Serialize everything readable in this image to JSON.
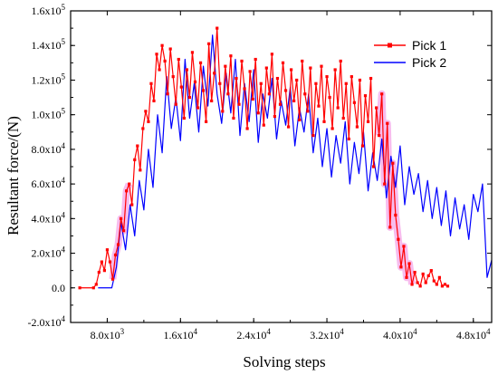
{
  "chart_data": {
    "type": "line",
    "title": "",
    "xlabel": "Solving steps",
    "ylabel": "Resultant force/(N)",
    "xlim": [
      4000,
      50000
    ],
    "ylim": [
      -20000,
      160000
    ],
    "xticks": [
      {
        "value": 8000,
        "label_mantissa": "8.0x10",
        "label_exp": "3"
      },
      {
        "value": 16000,
        "label_mantissa": "1.6x10",
        "label_exp": "4"
      },
      {
        "value": 24000,
        "label_mantissa": "2.4x10",
        "label_exp": "4"
      },
      {
        "value": 32000,
        "label_mantissa": "3.2x10",
        "label_exp": "4"
      },
      {
        "value": 40000,
        "label_mantissa": "4.0x10",
        "label_exp": "4"
      },
      {
        "value": 48000,
        "label_mantissa": "4.8x10",
        "label_exp": "4"
      }
    ],
    "yticks": [
      {
        "value": -20000,
        "label_mantissa": "-2.0x10",
        "label_exp": "4"
      },
      {
        "value": 0,
        "label_mantissa": "0.0",
        "label_exp": ""
      },
      {
        "value": 20000,
        "label_mantissa": "2.0x10",
        "label_exp": "4"
      },
      {
        "value": 40000,
        "label_mantissa": "4.0x10",
        "label_exp": "4"
      },
      {
        "value": 60000,
        "label_mantissa": "6.0x10",
        "label_exp": "4"
      },
      {
        "value": 80000,
        "label_mantissa": "8.0x10",
        "label_exp": "4"
      },
      {
        "value": 100000,
        "label_mantissa": "1.0x10",
        "label_exp": "5"
      },
      {
        "value": 120000,
        "label_mantissa": "1.2x10",
        "label_exp": "5"
      },
      {
        "value": 140000,
        "label_mantissa": "1.4x10",
        "label_exp": "5"
      },
      {
        "value": 160000,
        "label_mantissa": "1.6x10",
        "label_exp": "5"
      }
    ],
    "grid": false,
    "legend_position": "top-right",
    "series": [
      {
        "name": "Pick 1",
        "color": "#ff0000",
        "marker": "square",
        "x": [
          5000,
          6500,
          6800,
          7100,
          7400,
          7700,
          8000,
          8300,
          8600,
          8900,
          9200,
          9500,
          9800,
          10100,
          10400,
          10700,
          11000,
          11300,
          11600,
          11900,
          12200,
          12500,
          12800,
          13100,
          13400,
          13700,
          14000,
          14300,
          14600,
          14900,
          15200,
          15500,
          15800,
          16100,
          16400,
          16700,
          17000,
          17300,
          17600,
          17900,
          18200,
          18500,
          18800,
          19100,
          19400,
          19700,
          20000,
          20300,
          20600,
          20900,
          21200,
          21500,
          21800,
          22100,
          22400,
          22700,
          23000,
          23300,
          23600,
          23900,
          24200,
          24500,
          24800,
          25100,
          25400,
          25700,
          26000,
          26300,
          26600,
          26900,
          27200,
          27500,
          27800,
          28100,
          28400,
          28700,
          29000,
          29300,
          29600,
          29900,
          30200,
          30500,
          30800,
          31100,
          31400,
          31700,
          32000,
          32300,
          32600,
          32900,
          33200,
          33500,
          33800,
          34100,
          34400,
          34700,
          35000,
          35300,
          35600,
          35900,
          36200,
          36500,
          36800,
          37100,
          37400,
          37700,
          38000,
          38300,
          38600,
          38900,
          39200,
          39500,
          39800,
          40100,
          40400,
          40700,
          41000,
          41300,
          41600,
          41900,
          42200,
          42500,
          42800,
          43100,
          43400,
          43700,
          44000,
          44300,
          44600,
          44900,
          45200
        ],
        "y": [
          0,
          0,
          2000,
          9000,
          15000,
          10000,
          22000,
          15000,
          5000,
          19000,
          25000,
          40000,
          33000,
          56000,
          60000,
          48000,
          74000,
          82000,
          68000,
          92000,
          102000,
          96000,
          118000,
          108000,
          135000,
          126000,
          140000,
          131000,
          112000,
          138000,
          122000,
          106000,
          132000,
          116000,
          98000,
          126000,
          110000,
          136000,
          119000,
          104000,
          130000,
          114000,
          96000,
          141000,
          108000,
          124000,
          150000,
          118000,
          102000,
          128000,
          112000,
          134000,
          98000,
          121000,
          106000,
          131000,
          115000,
          92000,
          125000,
          109000,
          132000,
          101000,
          118000,
          94000,
          127000,
          112000,
          135000,
          99000,
          121000,
          106000,
          130000,
          114000,
          93000,
          126000,
          108000,
          120000,
          97000,
          131000,
          112000,
          102000,
          127000,
          88000,
          118000,
          105000,
          128000,
          96000,
          122000,
          110000,
          92000,
          126000,
          104000,
          131000,
          98000,
          118000,
          86000,
          122000,
          107000,
          93000,
          120000,
          82000,
          111000,
          96000,
          121000,
          70000,
          104000,
          88000,
          112000,
          60000,
          95000,
          35000,
          72000,
          42000,
          28000,
          12000,
          24000,
          6000,
          14000,
          2000,
          9000,
          3000,
          1000,
          8000,
          3000,
          7000,
          10000,
          4000,
          2000,
          6000,
          1000,
          2000,
          1000
        ],
        "highlighted_ranges": [
          [
            8500,
            10500
          ],
          [
            37500,
            41500
          ]
        ]
      },
      {
        "name": "Pick 2",
        "color": "#0000ff",
        "x": [
          7000,
          8500,
          9000,
          9500,
          10000,
          10500,
          11000,
          11500,
          12000,
          12500,
          13000,
          13500,
          14000,
          14500,
          15000,
          15500,
          16000,
          16500,
          17000,
          17500,
          18000,
          18500,
          19000,
          19500,
          20000,
          20500,
          21000,
          21500,
          22000,
          22500,
          23000,
          23500,
          24000,
          24500,
          25000,
          25500,
          26000,
          26500,
          27000,
          27500,
          28000,
          28500,
          29000,
          29500,
          30000,
          30500,
          31000,
          31500,
          32000,
          32500,
          33000,
          33500,
          34000,
          34500,
          35000,
          35500,
          36000,
          36500,
          37000,
          37500,
          38000,
          38500,
          39000,
          39500,
          40000,
          40500,
          41000,
          41500,
          42000,
          42500,
          43000,
          43500,
          44000,
          44500,
          45000,
          45500,
          46000,
          46500,
          47000,
          47500,
          48000,
          48500,
          49000,
          49500,
          50000
        ],
        "y": [
          0,
          0,
          12000,
          38000,
          22000,
          48000,
          30000,
          62000,
          45000,
          80000,
          58000,
          100000,
          78000,
          122000,
          92000,
          110000,
          85000,
          132000,
          98000,
          118000,
          90000,
          128000,
          105000,
          146000,
          112000,
          95000,
          124000,
          101000,
          132000,
          88000,
          118000,
          96000,
          126000,
          84000,
          112000,
          98000,
          121000,
          86000,
          108000,
          94000,
          116000,
          82000,
          104000,
          90000,
          112000,
          78000,
          98000,
          70000,
          92000,
          64000,
          88000,
          72000,
          96000,
          60000,
          84000,
          66000,
          90000,
          56000,
          78000,
          62000,
          86000,
          52000,
          76000,
          58000,
          82000,
          48000,
          70000,
          54000,
          66000,
          44000,
          62000,
          40000,
          58000,
          36000,
          56000,
          30000,
          52000,
          34000,
          48000,
          28000,
          54000,
          44000,
          60000,
          6000,
          16000
        ],
        "highlighted_ranges": []
      }
    ]
  }
}
